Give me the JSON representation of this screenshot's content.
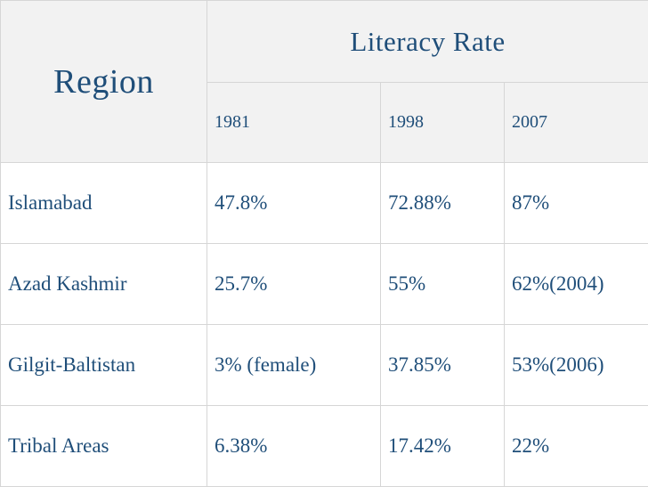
{
  "table": {
    "region_header": "Region",
    "group_header": "Literacy Rate",
    "years": [
      "1981",
      "1998",
      "2007"
    ],
    "rows": [
      {
        "region": "Islamabad",
        "values": [
          "47.8%",
          "72.88%",
          "87%"
        ]
      },
      {
        "region": "Azad Kashmir",
        "values": [
          "25.7%",
          "55%",
          "62%(2004)"
        ]
      },
      {
        "region": "Gilgit-Baltistan",
        "values": [
          "3% (female)",
          "37.85%",
          "53%(2006)"
        ]
      },
      {
        "region": "Tribal Areas",
        "values": [
          "6.38%",
          "17.42%",
          "22%"
        ]
      }
    ]
  }
}
